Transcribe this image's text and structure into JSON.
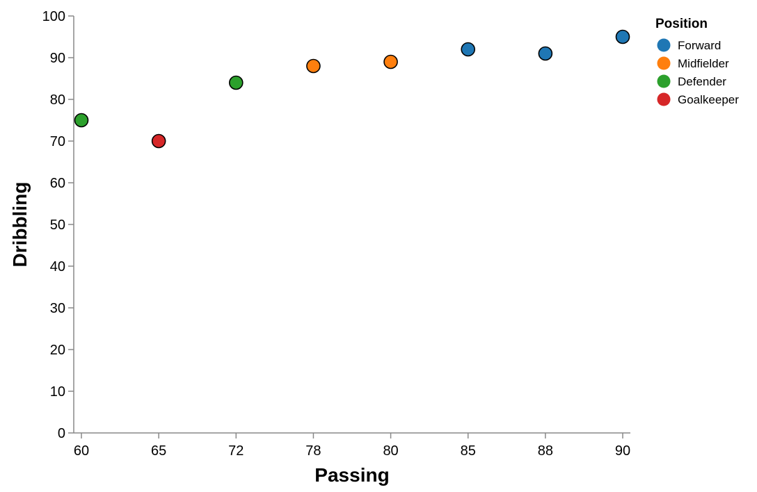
{
  "chart_data": {
    "type": "scatter",
    "title": "",
    "xlabel": "Passing",
    "ylabel": "Dribbling",
    "x_scale": "point",
    "x_categories": [
      60,
      65,
      72,
      78,
      80,
      85,
      88,
      90
    ],
    "ylim": [
      0,
      100
    ],
    "y_ticks": [
      0,
      10,
      20,
      30,
      40,
      50,
      60,
      70,
      80,
      90,
      100
    ],
    "grid": false,
    "legend": {
      "title": "Position",
      "placement": "top-right",
      "entries": [
        {
          "name": "Forward",
          "color": "#1f77b4"
        },
        {
          "name": "Midfielder",
          "color": "#ff7f0e"
        },
        {
          "name": "Defender",
          "color": "#2ca02c"
        },
        {
          "name": "Goalkeeper",
          "color": "#d62728"
        }
      ]
    },
    "points": [
      {
        "x": 60,
        "y": 75,
        "position": "Defender"
      },
      {
        "x": 65,
        "y": 70,
        "position": "Goalkeeper"
      },
      {
        "x": 72,
        "y": 84,
        "position": "Defender"
      },
      {
        "x": 78,
        "y": 88,
        "position": "Midfielder"
      },
      {
        "x": 80,
        "y": 89,
        "position": "Midfielder"
      },
      {
        "x": 85,
        "y": 92,
        "position": "Forward"
      },
      {
        "x": 88,
        "y": 91,
        "position": "Forward"
      },
      {
        "x": 90,
        "y": 95,
        "position": "Forward"
      }
    ]
  }
}
